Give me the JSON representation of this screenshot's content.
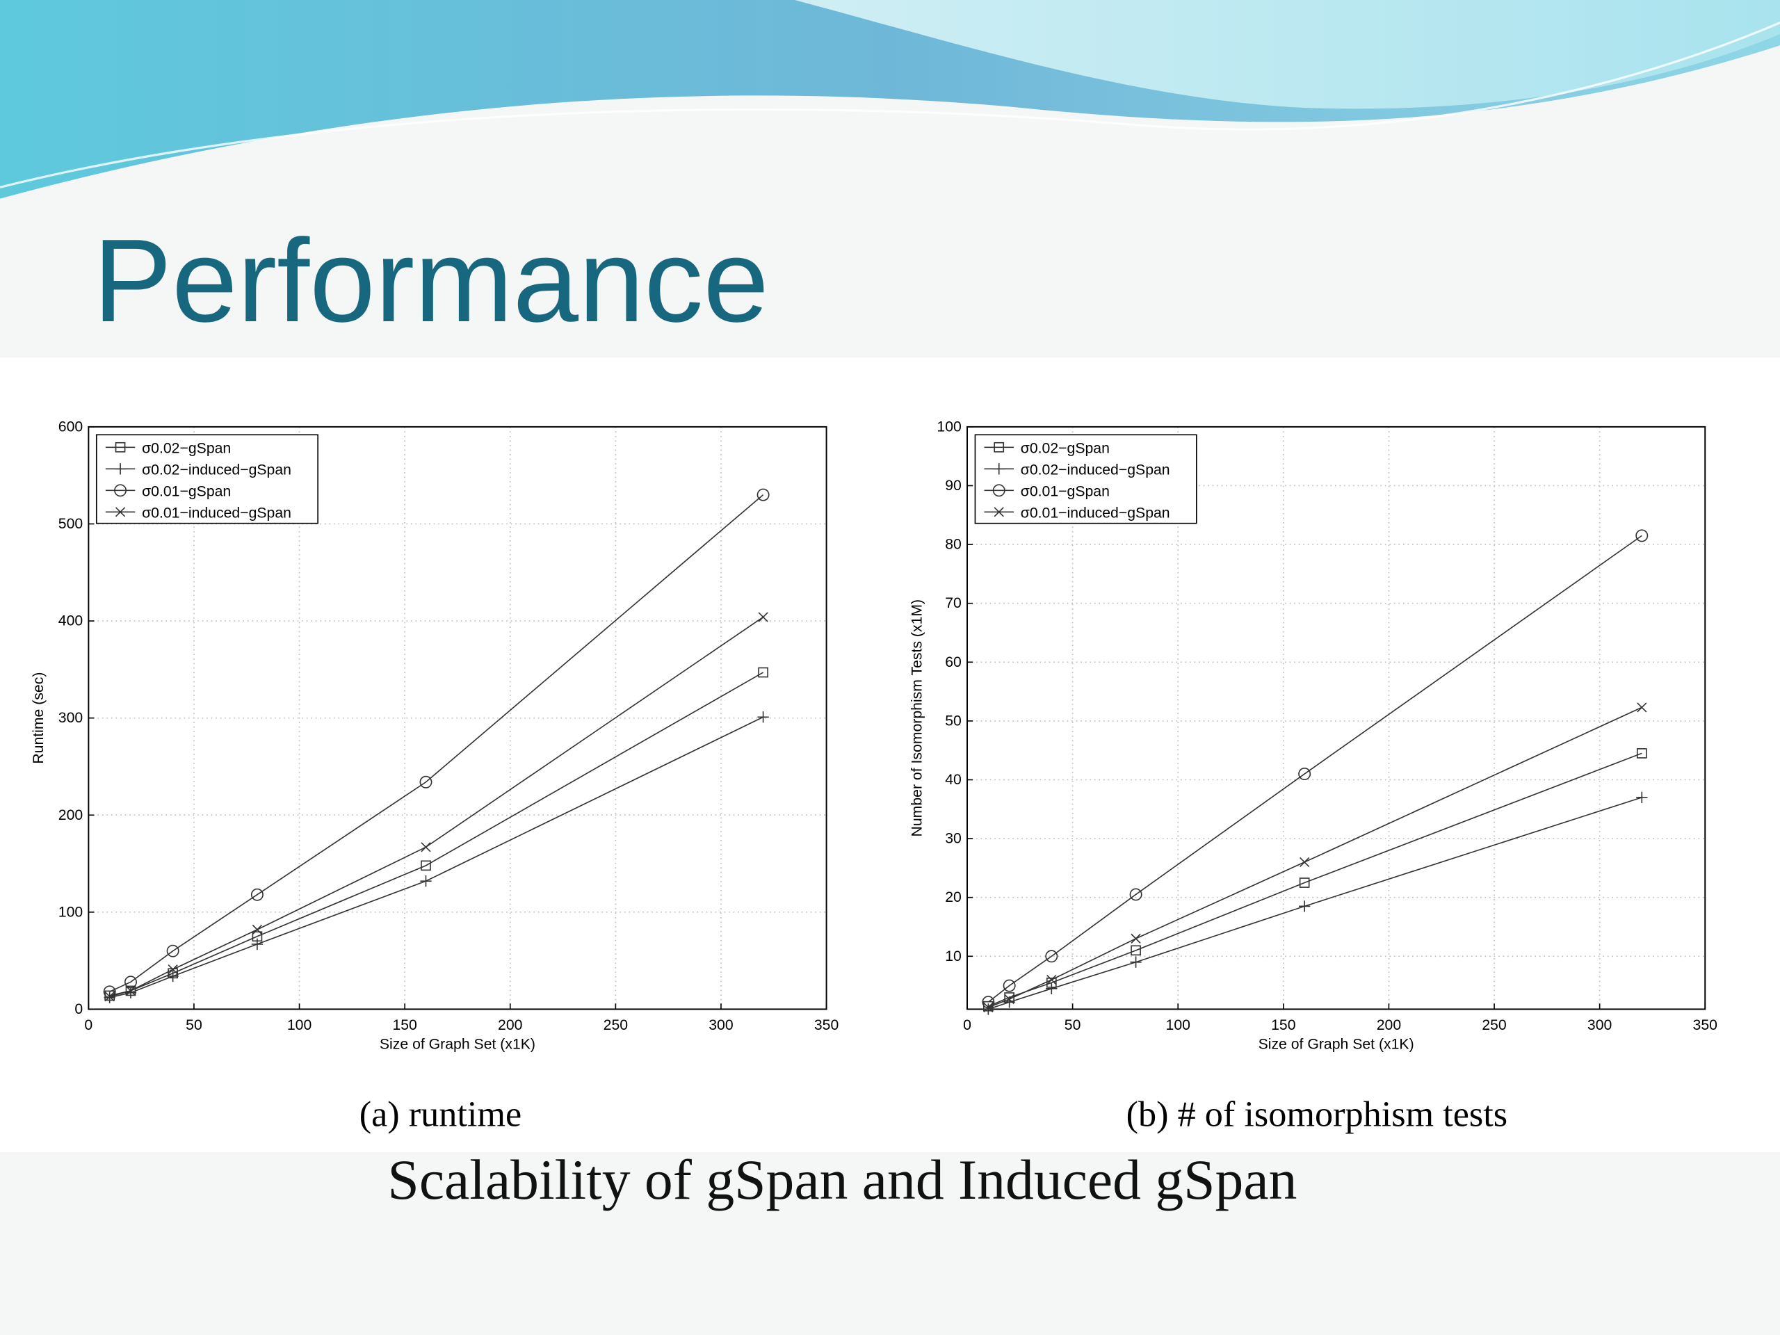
{
  "slide": {
    "title": "Performance",
    "caption": "Scalability of gSpan and Induced gSpan"
  },
  "chart_data": [
    {
      "type": "line",
      "caption": "(a) runtime",
      "xlabel": "Size of Graph Set (x1K)",
      "ylabel": "Runtime (sec)",
      "x": [
        10,
        20,
        40,
        80,
        160,
        320
      ],
      "series": [
        {
          "name": "σ0.02−gSpan",
          "color": "#333333",
          "marker": "square",
          "values": [
            14,
            19,
            37,
            75,
            148,
            347
          ]
        },
        {
          "name": "σ0.02−induced−gSpan",
          "color": "#333333",
          "marker": "plus",
          "values": [
            12,
            17,
            34,
            67,
            132,
            301
          ]
        },
        {
          "name": "σ0.01−gSpan",
          "color": "#333333",
          "marker": "circle",
          "values": [
            18,
            28,
            60,
            118,
            234,
            530
          ]
        },
        {
          "name": "σ0.01−induced−gSpan",
          "color": "#333333",
          "marker": "x",
          "values": [
            13,
            19,
            41,
            82,
            167,
            404
          ]
        }
      ],
      "xlim": [
        0,
        350
      ],
      "xticks": [
        0,
        50,
        100,
        150,
        200,
        250,
        300,
        350
      ],
      "ylim": [
        0,
        600
      ],
      "yticks": [
        0,
        100,
        200,
        300,
        400,
        500,
        600
      ],
      "grid": true,
      "legend": "upper left"
    },
    {
      "type": "line",
      "caption": "(b) # of isomorphism tests",
      "xlabel": "Size of Graph Set (x1K)",
      "ylabel": "Number of Isomorphism Tests (x1M)",
      "x": [
        10,
        20,
        40,
        80,
        160,
        320
      ],
      "series": [
        {
          "name": "σ0.02−gSpan",
          "color": "#333333",
          "marker": "square",
          "values": [
            1.5,
            3,
            5.5,
            11,
            22.5,
            44.5
          ]
        },
        {
          "name": "σ0.02−induced−gSpan",
          "color": "#333333",
          "marker": "plus",
          "values": [
            1,
            2.2,
            4.5,
            9,
            18.5,
            37
          ]
        },
        {
          "name": "σ0.01−gSpan",
          "color": "#333333",
          "marker": "circle",
          "values": [
            2.2,
            5,
            10,
            20.5,
            41,
            81.5
          ]
        },
        {
          "name": "σ0.01−induced−gSpan",
          "color": "#333333",
          "marker": "x",
          "values": [
            1.3,
            2.7,
            6,
            13,
            26,
            52.3
          ]
        }
      ],
      "xlim": [
        0,
        350
      ],
      "xticks": [
        0,
        50,
        100,
        150,
        200,
        250,
        300,
        350
      ],
      "ylim": [
        1,
        100
      ],
      "yticks": [
        10,
        20,
        30,
        40,
        50,
        60,
        70,
        80,
        90,
        100
      ],
      "grid": true,
      "legend": "upper left"
    }
  ]
}
